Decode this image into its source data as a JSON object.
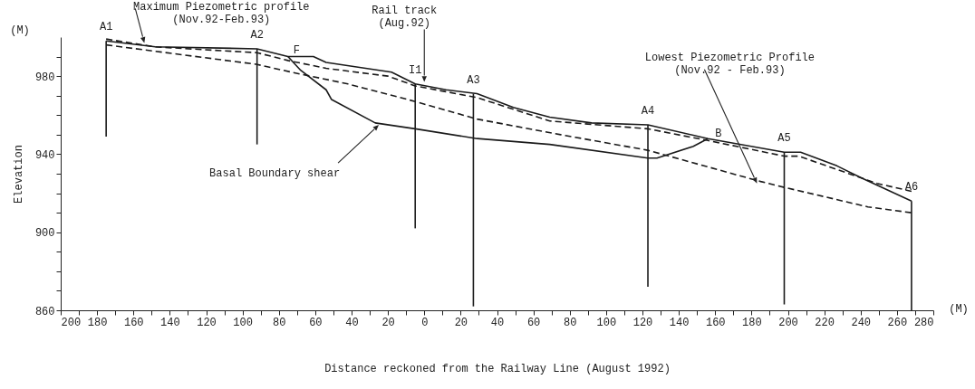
{
  "chart_data": {
    "type": "line",
    "xlabel": "Distance reckoned from the Railway Line (August 1992)",
    "ylabel": "Elevation",
    "xlim": [
      -200,
      280
    ],
    "ylim": [
      860,
      1000
    ],
    "xticks": [
      {
        "value": -200,
        "label": "200"
      },
      {
        "value": -190,
        "label": null
      },
      {
        "value": -180,
        "label": "180"
      },
      {
        "value": -170,
        "label": null
      },
      {
        "value": -160,
        "label": "160"
      },
      {
        "value": -150,
        "label": null
      },
      {
        "value": -140,
        "label": "140"
      },
      {
        "value": -130,
        "label": null
      },
      {
        "value": -120,
        "label": "120"
      },
      {
        "value": -110,
        "label": null
      },
      {
        "value": -100,
        "label": "100"
      },
      {
        "value": -90,
        "label": null
      },
      {
        "value": -80,
        "label": "80"
      },
      {
        "value": -70,
        "label": null
      },
      {
        "value": -60,
        "label": "60"
      },
      {
        "value": -50,
        "label": null
      },
      {
        "value": -40,
        "label": "40"
      },
      {
        "value": -30,
        "label": null
      },
      {
        "value": -20,
        "label": "20"
      },
      {
        "value": -10,
        "label": null
      },
      0,
      {
        "value": 10,
        "label": null
      },
      20,
      {
        "value": 30,
        "label": null
      },
      40,
      {
        "value": 50,
        "label": null
      },
      60,
      {
        "value": 70,
        "label": null
      },
      80,
      {
        "value": 90,
        "label": null
      },
      100,
      {
        "value": 110,
        "label": null
      },
      120,
      {
        "value": 130,
        "label": null
      },
      140,
      {
        "value": 150,
        "label": null
      },
      160,
      {
        "value": 170,
        "label": null
      },
      180,
      {
        "value": 190,
        "label": null
      },
      200,
      {
        "value": 210,
        "label": null
      },
      220,
      {
        "value": 230,
        "label": null
      },
      240,
      {
        "value": 250,
        "label": null
      },
      260,
      {
        "value": 270,
        "label": null
      },
      280
    ],
    "yticks": [
      860,
      {
        "value": 870,
        "label": null
      },
      {
        "value": 880,
        "label": null
      },
      {
        "value": 890,
        "label": null
      },
      900,
      {
        "value": 910,
        "label": null
      },
      {
        "value": 920,
        "label": null
      },
      {
        "value": 930,
        "label": null
      },
      940,
      {
        "value": 950,
        "label": null
      },
      {
        "value": 960,
        "label": null
      },
      {
        "value": 970,
        "label": null
      },
      980,
      {
        "value": 990,
        "label": null
      }
    ],
    "series": [
      {
        "color": "#1a1a1a",
        "line_style": "solid",
        "x": [
          -175,
          -148,
          -92,
          -75,
          -61,
          -54,
          -18,
          -5,
          12,
          29,
          49,
          69,
          92,
          123,
          156,
          198,
          207,
          227,
          240,
          268
        ],
        "values": [
          998,
          995,
          994,
          990,
          990,
          987,
          982,
          976,
          973,
          971,
          964,
          959,
          956,
          955,
          948,
          941,
          941,
          934,
          928,
          916
        ]
      },
      {
        "color": "#1a1a1a",
        "line_style": "dashed",
        "x": [
          -175,
          -148,
          -92,
          -75,
          -54,
          -20,
          -5,
          29,
          69,
          123,
          156,
          198,
          206,
          249,
          268
        ],
        "values": [
          999,
          995,
          992,
          988,
          984,
          980,
          975,
          969,
          957,
          953,
          947,
          939,
          939,
          925,
          921
        ]
      },
      {
        "color": "#1a1a1a",
        "line_style": "dashed",
        "x": [
          -175,
          -92,
          -73,
          -42,
          -5,
          29,
          75,
          123,
          185,
          198,
          244,
          268
        ],
        "values": [
          996,
          986,
          982,
          976,
          967,
          958,
          950,
          942,
          926,
          923,
          913,
          910
        ]
      },
      {
        "color": "#1a1a1a",
        "line_style": "solid",
        "x": [
          -75,
          -68,
          -54,
          -51,
          -27,
          -5,
          29,
          69,
          123,
          128,
          148,
          156
        ],
        "values": [
          990,
          983,
          973,
          968,
          956,
          953,
          948,
          945,
          938,
          938,
          944,
          948
        ]
      },
      {
        "name": "A1",
        "color": "#1a1a1a",
        "line_style": "solid",
        "x": [
          -175,
          -175
        ],
        "values": [
          998,
          949
        ]
      },
      {
        "name": "A2",
        "color": "#1a1a1a",
        "line_style": "solid",
        "x": [
          -92,
          -92
        ],
        "values": [
          994,
          945
        ]
      },
      {
        "name": "I1",
        "color": "#1a1a1a",
        "line_style": "solid",
        "x": [
          -5,
          -5
        ],
        "values": [
          976,
          902
        ]
      },
      {
        "name": "A3",
        "color": "#1a1a1a",
        "line_style": "solid",
        "x": [
          27,
          27
        ],
        "values": [
          971,
          862
        ]
      },
      {
        "name": "A4",
        "color": "#1a1a1a",
        "line_style": "solid",
        "x": [
          123,
          123
        ],
        "values": [
          955,
          872
        ]
      },
      {
        "name": "A5",
        "color": "#1a1a1a",
        "line_style": "solid",
        "x": [
          198,
          198
        ],
        "values": [
          941,
          863
        ]
      },
      {
        "name": "A6",
        "color": "#1a1a1a",
        "line_style": "solid",
        "x": [
          268,
          268
        ],
        "values": [
          916,
          860
        ]
      }
    ],
    "annotations": [
      {
        "text": "Maximum Piezometric profile\n(Nov.92-Feb.93)",
        "x": -154,
        "y": 997
      },
      {
        "text": "Rail track\n(Aug.92)",
        "x": 0,
        "y": 977
      },
      {
        "text": "Lowest Piezometric Profile\n(Nov.92 - Feb.93)",
        "x": 183,
        "y": 925
      },
      {
        "text": "Basal Boundary shear",
        "x": -25,
        "y": 955
      },
      {
        "text": "F",
        "x": -75,
        "y": 990
      },
      {
        "text": "B",
        "x": 156,
        "y": 948
      },
      "(M)",
      "(M)"
    ]
  }
}
